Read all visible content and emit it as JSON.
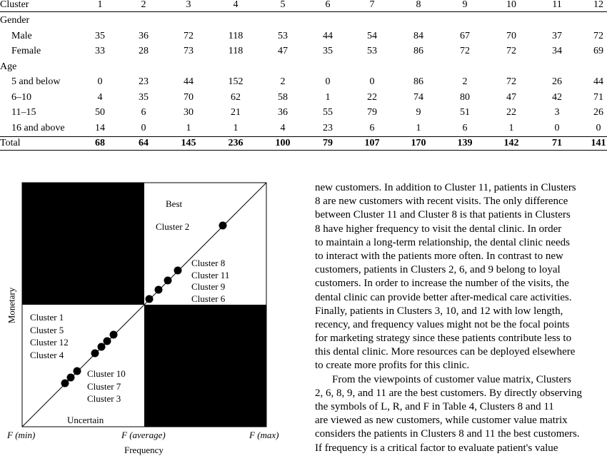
{
  "table": {
    "header": [
      "Cluster",
      "1",
      "2",
      "3",
      "4",
      "5",
      "6",
      "7",
      "8",
      "9",
      "10",
      "11",
      "12"
    ],
    "rows": [
      {
        "label": "Gender",
        "indent": false,
        "section": true,
        "values": []
      },
      {
        "label": "Male",
        "indent": true,
        "values": [
          "35",
          "36",
          "72",
          "118",
          "53",
          "44",
          "54",
          "84",
          "67",
          "70",
          "37",
          "72"
        ]
      },
      {
        "label": "Female",
        "indent": true,
        "values": [
          "33",
          "28",
          "73",
          "118",
          "47",
          "35",
          "53",
          "86",
          "72",
          "72",
          "34",
          "69"
        ]
      },
      {
        "label": "Age",
        "indent": false,
        "section": true,
        "values": []
      },
      {
        "label": "5 and below",
        "indent": true,
        "values": [
          "0",
          "23",
          "44",
          "152",
          "2",
          "0",
          "0",
          "86",
          "2",
          "72",
          "26",
          "44"
        ]
      },
      {
        "label": "6–10",
        "indent": true,
        "values": [
          "4",
          "35",
          "70",
          "62",
          "58",
          "1",
          "22",
          "74",
          "80",
          "47",
          "42",
          "71"
        ]
      },
      {
        "label": "11–15",
        "indent": true,
        "values": [
          "50",
          "6",
          "30",
          "21",
          "36",
          "55",
          "79",
          "9",
          "51",
          "22",
          "3",
          "26"
        ]
      },
      {
        "label": "16 and above",
        "indent": true,
        "values": [
          "14",
          "0",
          "1",
          "1",
          "4",
          "23",
          "6",
          "1",
          "6",
          "1",
          "0",
          "0"
        ]
      },
      {
        "label": "Total",
        "indent": false,
        "total": true,
        "values": [
          "68",
          "64",
          "145",
          "236",
          "100",
          "79",
          "107",
          "170",
          "139",
          "142",
          "71",
          "141"
        ]
      }
    ]
  },
  "figure": {
    "quadrant_best": "Best",
    "quadrant_uncertain": "Uncertain",
    "best_cluster": "Cluster 2",
    "upper_group": [
      "Cluster 8",
      "Cluster 11",
      "Cluster 9",
      "Cluster 6"
    ],
    "left_group": [
      "Cluster 1",
      "Cluster 5",
      "Cluster 12",
      "Cluster 4"
    ],
    "lower_group": [
      "Cluster 10",
      "Cluster 7",
      "Cluster 3"
    ],
    "x_min_label": "F (min)",
    "x_avg_label": "F (average)",
    "x_max_label": "F (max)",
    "x_axis_label": "Frequency",
    "y_axis_label": "Monetary",
    "colors": {
      "fill": "#000000",
      "background": "#ffffff"
    }
  },
  "text": {
    "lines": [
      "new customers. In addition to Cluster 11, patients in Clusters",
      "8 are new customers with recent visits. The only difference",
      "between Cluster 11 and Cluster 8 is that patients in Clusters",
      "8 have higher frequency to visit the dental clinic. In order",
      "to maintain a long-term relationship, the dental clinic needs",
      "to interact with the patients more often. In contrast to new",
      "customers, patients in Clusters 2, 6, and 9 belong to loyal",
      "customers. In order to increase the number of the visits, the",
      "dental clinic can provide better after-medical care activities.",
      "Finally, patients in Clusters 3, 10, and 12 with low length,",
      "recency, and frequency values might not be the focal points",
      "for marketing strategy since these patients contribute less to",
      "this dental clinic. More resources can be deployed elsewhere",
      "to create more profits for this clinic.",
      "From the viewpoints of customer value matrix, Clusters",
      "2, 6, 8, 9, and 11 are the best customers. By directly observing",
      "the symbols of L, R, and F in Table 4, Clusters 8 and 11",
      "are viewed as new customers, while customer value matrix",
      "considers the patients in Clusters 8 and 11 the best customers.",
      "If frequency is a critical factor to evaluate patient's value"
    ],
    "indent_line": 14
  }
}
